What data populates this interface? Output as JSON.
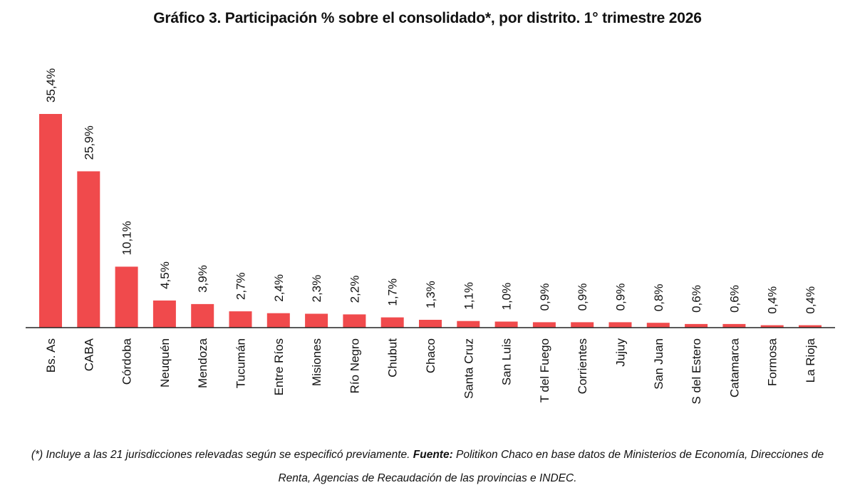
{
  "chart_data": {
    "type": "bar",
    "title": "Gráfico 3. Participación % sobre el consolidado*, por distrito. 1° trimestre 2026",
    "categories": [
      "Bs. As",
      "CABA",
      "Córdoba",
      "Neuquén",
      "Mendoza",
      "Tucumán",
      "Entre Ríos",
      "Misiones",
      "Río Negro",
      "Chubut",
      "Chaco",
      "Santa Cruz",
      "San Luis",
      "T del Fuego",
      "Corrientes",
      "Jujuy",
      "San Juan",
      "S del Estero",
      "Catamarca",
      "Formosa",
      "La Rioja"
    ],
    "values": [
      35.4,
      25.9,
      10.1,
      4.5,
      3.9,
      2.7,
      2.4,
      2.3,
      2.2,
      1.7,
      1.3,
      1.1,
      1.0,
      0.9,
      0.9,
      0.9,
      0.8,
      0.6,
      0.6,
      0.4,
      0.4
    ],
    "data_labels": [
      "35,4%",
      "25,9%",
      "10,1%",
      "4,5%",
      "3,9%",
      "2,7%",
      "2,4%",
      "2,3%",
      "2,2%",
      "1,7%",
      "1,3%",
      "1,1%",
      "1,0%",
      "0,9%",
      "0,9%",
      "0,9%",
      "0,8%",
      "0,6%",
      "0,6%",
      "0,4%",
      "0,4%"
    ],
    "xlabel": "",
    "ylabel": "",
    "ylim": [
      0,
      35.4
    ],
    "grid": false,
    "legend": "none",
    "bar_color": "#f04a4c"
  },
  "footnote": {
    "note": "(*) Incluye a las 21 jurisdicciones relevadas según se especificó previamente.",
    "source_label": "Fuente:",
    "source_text": "Politikon Chaco en base datos de Ministerios de Economía, Direcciones de Renta, Agencias de Recaudación de las provincias e INDEC."
  }
}
